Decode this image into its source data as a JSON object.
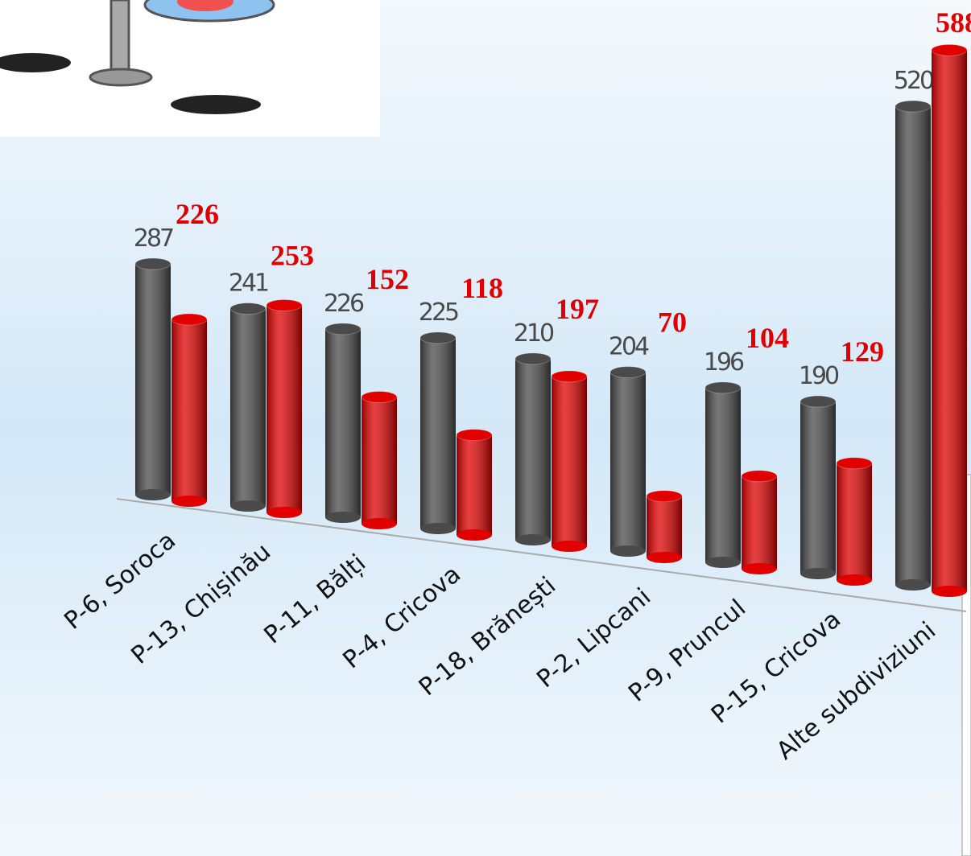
{
  "chart_data": {
    "type": "bar3d",
    "categories": [
      "P-6, Soroca",
      "P-13, Chișinău",
      "P-11, Bălți",
      "P-4, Cricova",
      "P-18, Brănești",
      "P-2, Lipcani",
      "P-9, Pruncul",
      "P-15, Cricova",
      "Alte subdiviziuni"
    ],
    "series": [
      {
        "color": "#4a4a4a",
        "values": [
          287,
          241,
          226,
          225,
          210,
          204,
          196,
          190,
          520
        ]
      },
      {
        "color": "#e00000",
        "values": [
          226,
          253,
          152,
          118,
          197,
          70,
          104,
          129,
          588
        ]
      }
    ],
    "ylim": [
      0,
      600
    ]
  }
}
